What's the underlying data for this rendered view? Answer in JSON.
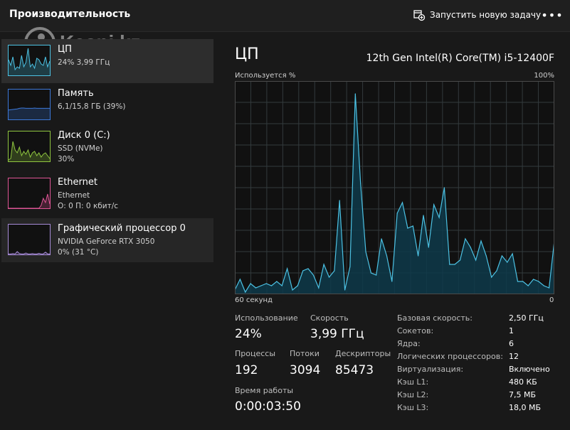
{
  "app": {
    "title": "Производительность",
    "run_task_label": "Запустить новую задачу",
    "more_glyph": "•••",
    "watermark_text": "Kaspi.kz"
  },
  "sidebar": {
    "items": [
      {
        "title": "ЦП",
        "sub1": "24% 3,99 ГГц",
        "sub2": "",
        "color": "#4cc2e4",
        "thumb": [
          0.55,
          0.35,
          0.65,
          0.2,
          0.3,
          0.25,
          0.7,
          0.3,
          0.45,
          0.95,
          0.3,
          0.4,
          0.25,
          0.6,
          0.55,
          0.4,
          0.35,
          0.65,
          0.3,
          0.5
        ]
      },
      {
        "title": "Память",
        "sub1": "6,1/15,8 ГБ (39%)",
        "sub2": "",
        "color": "#3c78d8",
        "thumb": [
          0.33,
          0.34,
          0.35,
          0.36,
          0.37,
          0.39,
          0.4,
          0.4,
          0.39,
          0.39,
          0.39,
          0.39,
          0.4,
          0.39,
          0.39,
          0.39,
          0.39,
          0.39,
          0.39,
          0.39
        ]
      },
      {
        "title": "Диск 0 (C:)",
        "sub1": "SSD (NVMe)",
        "sub2": "30%",
        "color": "#8fc63f",
        "thumb": [
          0.05,
          0.1,
          0.7,
          0.4,
          0.3,
          0.5,
          0.2,
          0.35,
          0.25,
          0.4,
          0.15,
          0.3,
          0.35,
          0.2,
          0.3,
          0.15,
          0.25,
          0.3,
          0.2,
          0.1
        ]
      },
      {
        "title": "Ethernet",
        "sub1": "Ethernet",
        "sub2": "О: 0 П: 0 кбит/с",
        "color": "#e05596",
        "thumb": [
          0.0,
          0.0,
          0.0,
          0.0,
          0.0,
          0.0,
          0.0,
          0.0,
          0.0,
          0.0,
          0.0,
          0.0,
          0.0,
          0.0,
          0.0,
          0.1,
          0.35,
          0.2,
          0.5,
          0.15
        ]
      },
      {
        "title": "Графический процессор 0",
        "sub1": "NVIDIA GeForce RTX 3050",
        "sub2": "0% (31 °C)",
        "color": "#a78bd8",
        "thumb": [
          0.02,
          0.02,
          0.03,
          0.02,
          0.1,
          0.03,
          0.02,
          0.02,
          0.05,
          0.02,
          0.02,
          0.03,
          0.02,
          0.02,
          0.04,
          0.02,
          0.02,
          0.08,
          0.02,
          0.02
        ]
      }
    ]
  },
  "main": {
    "title": "ЦП",
    "cpu_model": "12th Gen Intel(R) Core(TM) i5-12400F",
    "axis_top_left": "Используется %",
    "axis_top_right": "100%",
    "axis_bottom_left": "60 секунд",
    "axis_bottom_right": "0",
    "colors": {
      "line": "#4cc2e4",
      "fill": "#0e3a4a",
      "grid": "#333a3d",
      "border": "#4a4a4a"
    }
  },
  "stats": {
    "usage_label": "Использование",
    "usage_value": "24%",
    "speed_label": "Скорость",
    "speed_value": "3,99 ГГц",
    "processes_label": "Процессы",
    "processes_value": "192",
    "threads_label": "Потоки",
    "threads_value": "3094",
    "handles_label": "Дескрипторы",
    "handles_value": "85473",
    "uptime_label": "Время работы",
    "uptime_value": "0:00:03:50"
  },
  "specs": [
    {
      "k": "Базовая скорость:",
      "v": "2,50 ГГц"
    },
    {
      "k": "Сокетов:",
      "v": "1"
    },
    {
      "k": "Ядра:",
      "v": "6"
    },
    {
      "k": "Логических процессоров:",
      "v": "12"
    },
    {
      "k": "Виртуализация:",
      "v": "Включено"
    },
    {
      "k": "Кэш L1:",
      "v": "480 КБ"
    },
    {
      "k": "Кэш L2:",
      "v": "7,5 МБ"
    },
    {
      "k": "Кэш L3:",
      "v": "18,0 МБ"
    }
  ],
  "chart_data": {
    "type": "area",
    "ylim": [
      0,
      100
    ],
    "x_label_left": "60 секунд",
    "x_label_right": "0",
    "y_label": "Используется %",
    "grid": true,
    "values": [
      2,
      7,
      1,
      5,
      3,
      4,
      5,
      4,
      6,
      4,
      12,
      2,
      4,
      11,
      12,
      9,
      3,
      14,
      8,
      11,
      44,
      2,
      13,
      94,
      52,
      20,
      10,
      9,
      26,
      18,
      6,
      38,
      43,
      31,
      32,
      18,
      37,
      22,
      42,
      36,
      50,
      14,
      14,
      16,
      26,
      22,
      16,
      25,
      18,
      8,
      11,
      18,
      15,
      19,
      6,
      6,
      4,
      7,
      6,
      4,
      3,
      25
    ]
  }
}
